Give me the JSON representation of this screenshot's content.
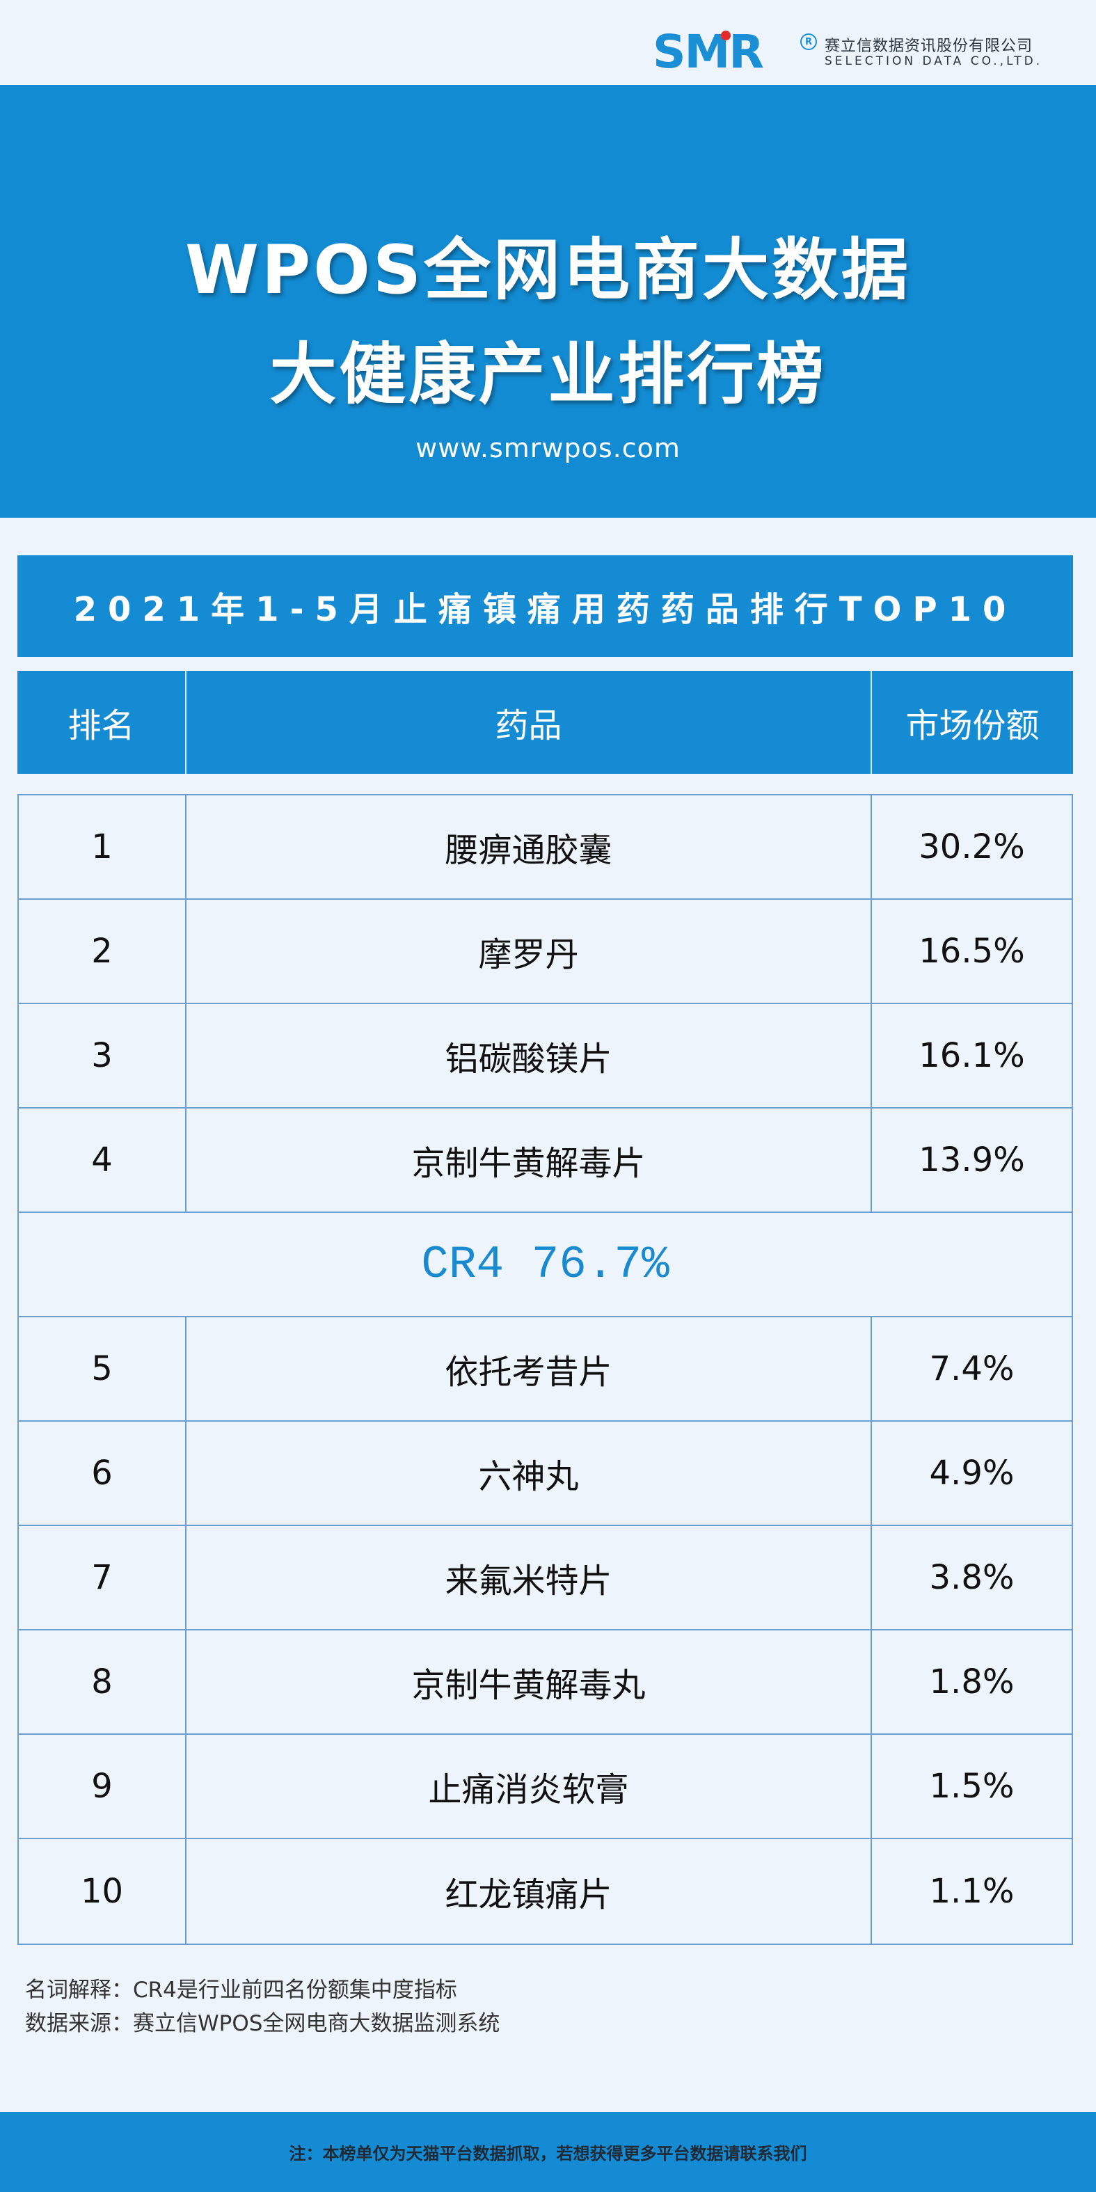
{
  "brand": {
    "logo_text": "SMR",
    "reg_mark": "R",
    "company_cn": "赛立信数据资讯股份有限公司",
    "company_en": "SELECTION DATA CO.,LTD."
  },
  "hero": {
    "title_line1": "WPOS全网电商大数据",
    "title_line2": "大健康产业排行榜",
    "url": "www.smrwpos.com"
  },
  "subtitle": "2021年1-5月止痛镇痛用药药品排行TOP10",
  "table": {
    "headers": [
      "排名",
      "药品",
      "市场份额"
    ],
    "rows_top": [
      {
        "rank": "1",
        "drug": "腰痹通胶囊",
        "share": "30.2%"
      },
      {
        "rank": "2",
        "drug": "摩罗丹",
        "share": "16.5%"
      },
      {
        "rank": "3",
        "drug": "铝碳酸镁片",
        "share": "16.1%"
      },
      {
        "rank": "4",
        "drug": "京制牛黄解毒片",
        "share": "13.9%"
      }
    ],
    "cr4": "CR4 76.7%",
    "rows_bottom": [
      {
        "rank": "5",
        "drug": "依托考昔片",
        "share": "7.4%"
      },
      {
        "rank": "6",
        "drug": "六神丸",
        "share": "4.9%"
      },
      {
        "rank": "7",
        "drug": "来氟米特片",
        "share": "3.8%"
      },
      {
        "rank": "8",
        "drug": "京制牛黄解毒丸",
        "share": "1.8%"
      },
      {
        "rank": "9",
        "drug": "止痛消炎软膏",
        "share": "1.5%"
      },
      {
        "rank": "10",
        "drug": "红龙镇痛片",
        "share": "1.1%"
      }
    ]
  },
  "notes": {
    "definition": "名词解释：CR4是行业前四名份额集中度指标",
    "source": "数据来源：赛立信WPOS全网电商大数据监测系统"
  },
  "footer": "注：本榜单仅为天猫平台数据抓取，若想获得更多平台数据请联系我们",
  "colors": {
    "primary_blue": "#148bd2",
    "page_bg": "#edf4fb",
    "grid_line": "#6a9fd0",
    "cr4_text": "#1a8ad0"
  }
}
